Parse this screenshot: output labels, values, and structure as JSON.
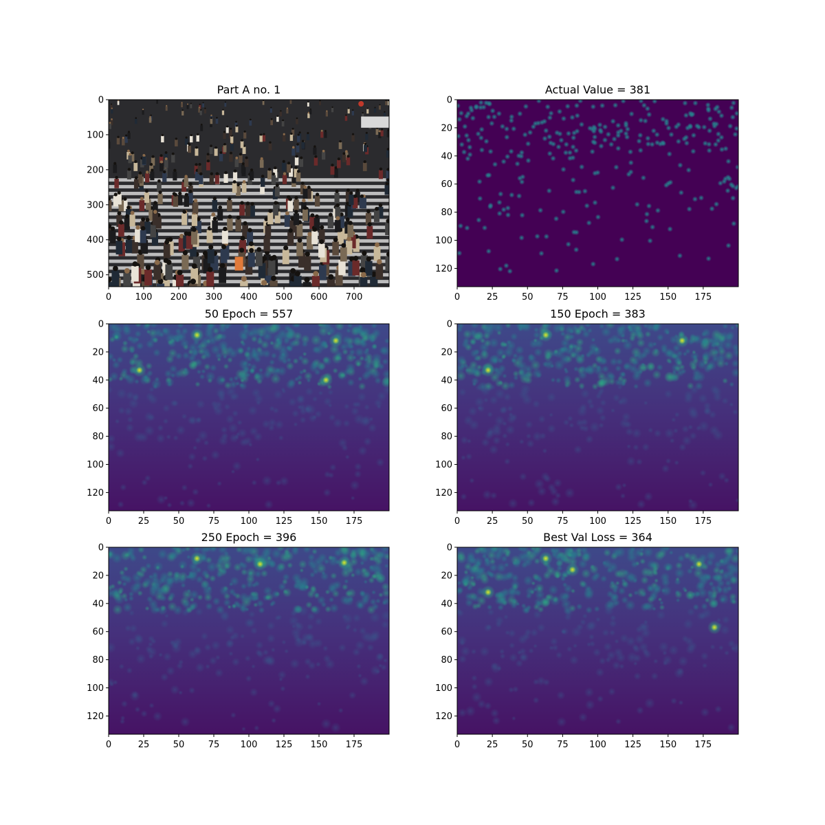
{
  "colors": {
    "axes": "#000000",
    "background": "#ffffff",
    "colormap": "viridis",
    "photo_base": "#2b2b2e"
  },
  "chart_data": [
    {
      "type": "image",
      "title": "Part A no. 1",
      "content": "photograph of a crowd crossing a street",
      "xlim": [
        0,
        800
      ],
      "ylim": [
        534,
        0
      ],
      "xticks": [
        0,
        100,
        200,
        300,
        400,
        500,
        600,
        700
      ],
      "yticks": [
        0,
        100,
        200,
        300,
        400,
        500
      ]
    },
    {
      "type": "heatmap",
      "title": "Actual Value = 381",
      "colormap": "viridis",
      "xlim": [
        0,
        200
      ],
      "ylim": [
        133,
        0
      ],
      "xticks": [
        0,
        25,
        50,
        75,
        100,
        125,
        150,
        175
      ],
      "yticks": [
        0,
        20,
        40,
        60,
        80,
        100,
        120
      ],
      "pattern": "sparse-dots",
      "count": 381
    },
    {
      "type": "heatmap",
      "title": "50 Epoch = 557",
      "colormap": "viridis",
      "xlim": [
        0,
        200
      ],
      "ylim": [
        133,
        0
      ],
      "xticks": [
        0,
        25,
        50,
        75,
        100,
        125,
        150,
        175
      ],
      "yticks": [
        0,
        20,
        40,
        60,
        80,
        100,
        120
      ],
      "pattern": "diffuse",
      "count": 557,
      "hotspots": [
        [
          63,
          8
        ],
        [
          162,
          12
        ],
        [
          22,
          33
        ],
        [
          155,
          40
        ]
      ]
    },
    {
      "type": "heatmap",
      "title": "150 Epoch = 383",
      "colormap": "viridis",
      "xlim": [
        0,
        200
      ],
      "ylim": [
        133,
        0
      ],
      "xticks": [
        0,
        25,
        50,
        75,
        100,
        125,
        150,
        175
      ],
      "yticks": [
        0,
        20,
        40,
        60,
        80,
        100,
        120
      ],
      "pattern": "diffuse",
      "count": 383,
      "hotspots": [
        [
          63,
          8
        ],
        [
          22,
          33
        ],
        [
          160,
          12
        ]
      ]
    },
    {
      "type": "heatmap",
      "title": "250 Epoch = 396",
      "colormap": "viridis",
      "xlim": [
        0,
        200
      ],
      "ylim": [
        133,
        0
      ],
      "xticks": [
        0,
        25,
        50,
        75,
        100,
        125,
        150,
        175
      ],
      "yticks": [
        0,
        20,
        40,
        60,
        80,
        100,
        120
      ],
      "pattern": "diffuse",
      "count": 396,
      "hotspots": [
        [
          63,
          8
        ],
        [
          168,
          11
        ],
        [
          108,
          12
        ]
      ]
    },
    {
      "type": "heatmap",
      "title": "Best Val Loss = 364",
      "colormap": "viridis",
      "xlim": [
        0,
        200
      ],
      "ylim": [
        133,
        0
      ],
      "xticks": [
        0,
        25,
        50,
        75,
        100,
        125,
        150,
        175
      ],
      "yticks": [
        0,
        20,
        40,
        60,
        80,
        100,
        120
      ],
      "pattern": "diffuse",
      "count": 364,
      "hotspots": [
        [
          63,
          8
        ],
        [
          82,
          16
        ],
        [
          22,
          32
        ],
        [
          183,
          57
        ],
        [
          172,
          12
        ]
      ]
    }
  ]
}
